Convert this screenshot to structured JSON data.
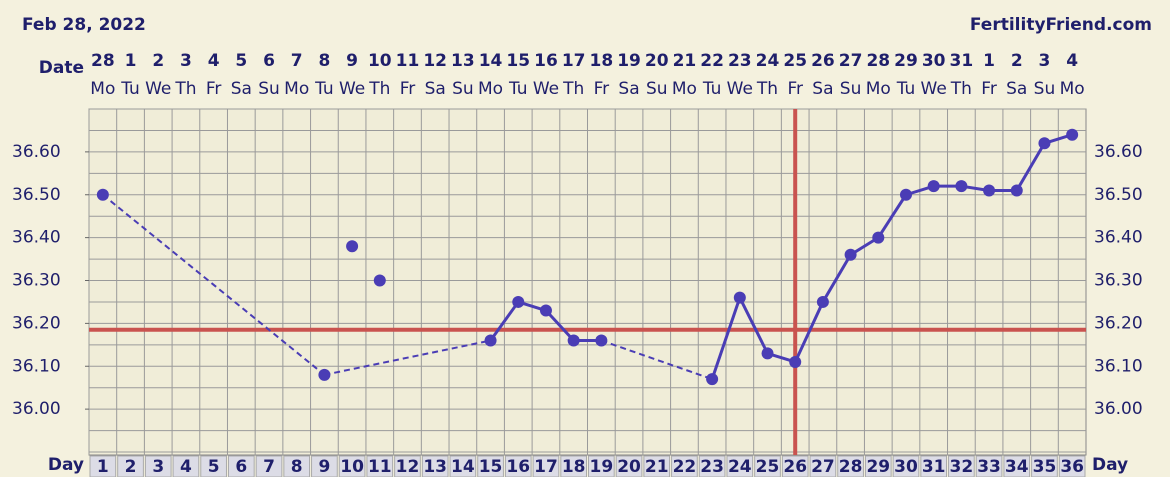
{
  "chart_data": {
    "type": "line",
    "title": "Feb 28, 2022",
    "brand": "FertilityFriend.com",
    "date_label": "Date",
    "day_label": "Day",
    "x": [
      1,
      2,
      3,
      4,
      5,
      6,
      7,
      8,
      9,
      10,
      11,
      12,
      13,
      14,
      15,
      16,
      17,
      18,
      19,
      20,
      21,
      22,
      23,
      24,
      25,
      26,
      27,
      28,
      29,
      30,
      31,
      32,
      33,
      34,
      35,
      36
    ],
    "dates": [
      "28",
      "1",
      "2",
      "3",
      "4",
      "5",
      "6",
      "7",
      "8",
      "9",
      "10",
      "11",
      "12",
      "13",
      "14",
      "15",
      "16",
      "17",
      "18",
      "19",
      "20",
      "21",
      "22",
      "23",
      "24",
      "25",
      "26",
      "27",
      "28",
      "29",
      "30",
      "31",
      "1",
      "2",
      "3",
      "4"
    ],
    "weekdays": [
      "Mo",
      "Tu",
      "We",
      "Th",
      "Fr",
      "Sa",
      "Su",
      "Mo",
      "Tu",
      "We",
      "Th",
      "Fr",
      "Sa",
      "Su",
      "Mo",
      "Tu",
      "We",
      "Th",
      "Fr",
      "Sa",
      "Su",
      "Mo",
      "Tu",
      "We",
      "Th",
      "Fr",
      "Sa",
      "Su",
      "Mo",
      "Tu",
      "We",
      "Th",
      "Fr",
      "Sa",
      "Su",
      "Mo"
    ],
    "values": [
      36.5,
      null,
      null,
      null,
      null,
      null,
      null,
      null,
      36.08,
      null,
      null,
      null,
      null,
      null,
      36.16,
      36.25,
      36.23,
      36.16,
      36.16,
      null,
      null,
      null,
      36.07,
      36.26,
      36.13,
      36.11,
      36.25,
      36.36,
      36.4,
      36.5,
      36.52,
      36.52,
      36.51,
      36.51,
      36.62,
      36.64
    ],
    "discarded_values": [
      null,
      null,
      null,
      null,
      null,
      null,
      null,
      null,
      null,
      36.38,
      36.3,
      null,
      null,
      null,
      null,
      null,
      null,
      null,
      null,
      null,
      null,
      null,
      null,
      null,
      null,
      null,
      null,
      null,
      null,
      null,
      null,
      null,
      null,
      null,
      null,
      null
    ],
    "color": "#4a3db5",
    "coverline": 36.185,
    "ovulation_day": 26,
    "line_color": "#c9534f",
    "xlim": [
      0.5,
      36.5
    ],
    "ylim": [
      35.9,
      36.7
    ],
    "yticks": [
      {
        "value": 36.0,
        "label": "36.00"
      },
      {
        "value": 36.1,
        "label": "36.10"
      },
      {
        "value": 36.2,
        "label": "36.20"
      },
      {
        "value": 36.3,
        "label": "36.30"
      },
      {
        "value": 36.4,
        "label": "36.40"
      },
      {
        "value": 36.5,
        "label": "36.50"
      },
      {
        "value": 36.6,
        "label": "36.60"
      }
    ],
    "ygrid": [
      35.9,
      35.95,
      36.0,
      36.05,
      36.1,
      36.15,
      36.2,
      36.25,
      36.3,
      36.35,
      36.4,
      36.45,
      36.5,
      36.55,
      36.6,
      36.65,
      36.7
    ]
  }
}
